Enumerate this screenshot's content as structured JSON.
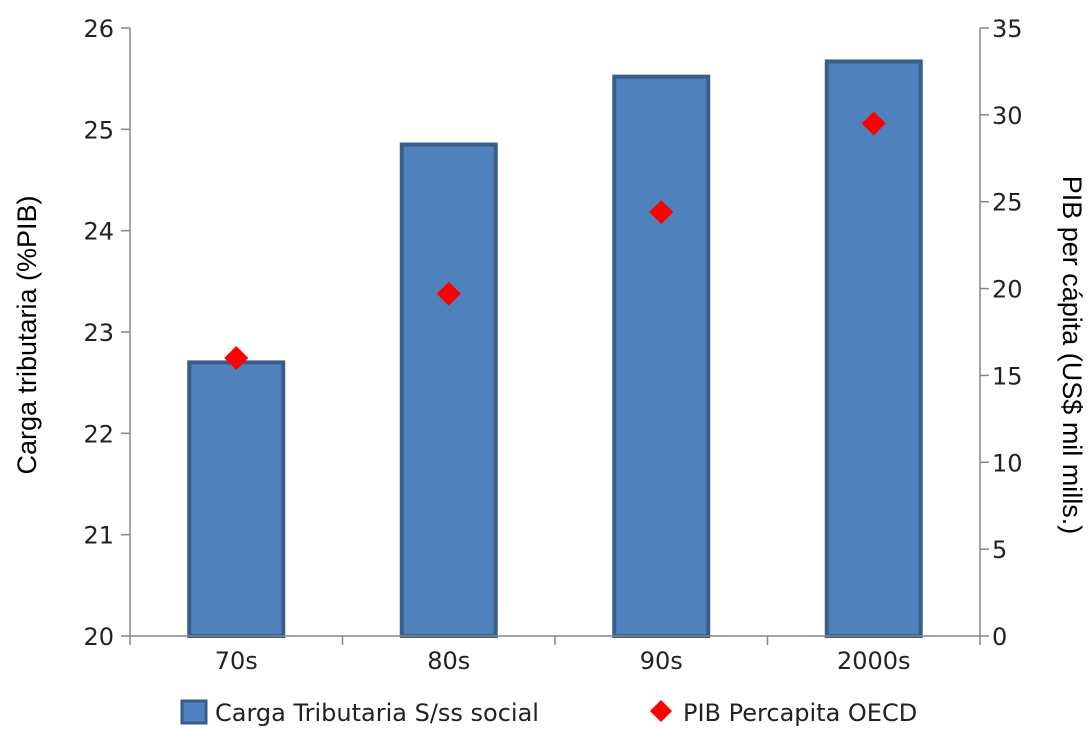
{
  "chart_data": {
    "type": "bar",
    "categories": [
      "70s",
      "80s",
      "90s",
      "2000s"
    ],
    "series": [
      {
        "name": "Carga Tributaria S/ss social",
        "kind": "bar",
        "axis": "left",
        "color": "#4F81BD",
        "border_color": "#385D8A",
        "values": [
          22.7,
          24.85,
          25.52,
          25.67
        ]
      },
      {
        "name": "PIB Percapita OECD",
        "kind": "marker",
        "marker": "diamond",
        "axis": "right",
        "color": "#FF0000",
        "values": [
          16.0,
          19.7,
          24.4,
          29.5
        ]
      }
    ],
    "ylabel": "Carga tributaria (%PIB)",
    "y2label": "PIB per cápita (US$ mil mills.)",
    "xlabel": "",
    "ylim": [
      20,
      26
    ],
    "y2lim": [
      0,
      35
    ],
    "yticks": [
      "20",
      "21",
      "22",
      "23",
      "24",
      "25",
      "26"
    ],
    "y2ticks": [
      "0",
      "5",
      "10",
      "15",
      "20",
      "25",
      "30",
      "35"
    ],
    "grid": false,
    "legend_position": "bottom"
  }
}
